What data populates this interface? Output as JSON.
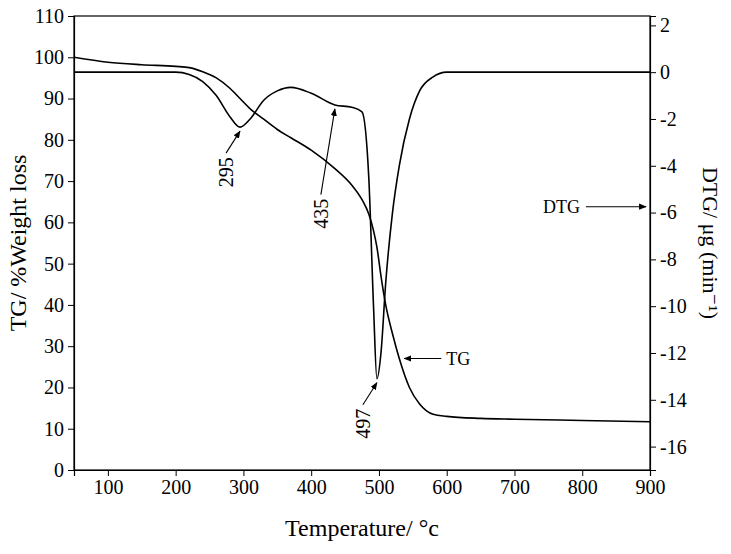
{
  "chart_data": {
    "type": "line",
    "x_label": "Temperature/ °c",
    "y_label": "TG/ %Weight loss",
    "y2_label": "DTG/ μg (min⁻¹)",
    "x": [
      50,
      100,
      150,
      200,
      220,
      240,
      260,
      280,
      295,
      310,
      330,
      350,
      370,
      400,
      435,
      460,
      475,
      485,
      492,
      497,
      503,
      510,
      520,
      530,
      545,
      560,
      580,
      600,
      650,
      700,
      800,
      900
    ],
    "series": [
      {
        "name": "TG",
        "color": "#000000",
        "values": [
          100,
          98.8,
          98.2,
          97.8,
          97.5,
          96.5,
          95,
          92.5,
          90,
          87.5,
          85,
          82.5,
          80.5,
          77.5,
          73,
          69,
          65.5,
          62,
          58,
          54,
          47,
          40,
          33,
          27,
          20,
          16,
          13.5,
          13,
          12.5,
          12.3,
          12,
          11.7
        ]
      },
      {
        "name": "DTG",
        "color": "#000000",
        "axis": "y2",
        "values": [
          0,
          0,
          0,
          0,
          -0.1,
          -0.4,
          -1.0,
          -1.9,
          -2.35,
          -2.0,
          -1.2,
          -0.8,
          -0.65,
          -0.9,
          -1.4,
          -1.5,
          -1.7,
          -4.5,
          -10,
          -13.1,
          -12,
          -9,
          -6,
          -4,
          -2,
          -0.8,
          -0.2,
          0,
          0,
          0,
          0,
          0
        ]
      }
    ],
    "xlim": [
      50,
      900
    ],
    "xticks": [
      100,
      200,
      300,
      400,
      500,
      600,
      700,
      800,
      900
    ],
    "ylim": [
      0,
      110
    ],
    "yticks": [
      0,
      10,
      20,
      30,
      40,
      50,
      60,
      70,
      80,
      90,
      100,
      110
    ],
    "y2lim": [
      -17,
      2.4
    ],
    "y2ticks": [
      -16,
      -14,
      -12,
      -10,
      -8,
      -6,
      -4,
      -2,
      0,
      2
    ],
    "annotations": [
      {
        "text": "295",
        "x": 295
      },
      {
        "text": "435",
        "x": 435
      },
      {
        "text": "497",
        "x": 497
      }
    ],
    "grid": false
  }
}
